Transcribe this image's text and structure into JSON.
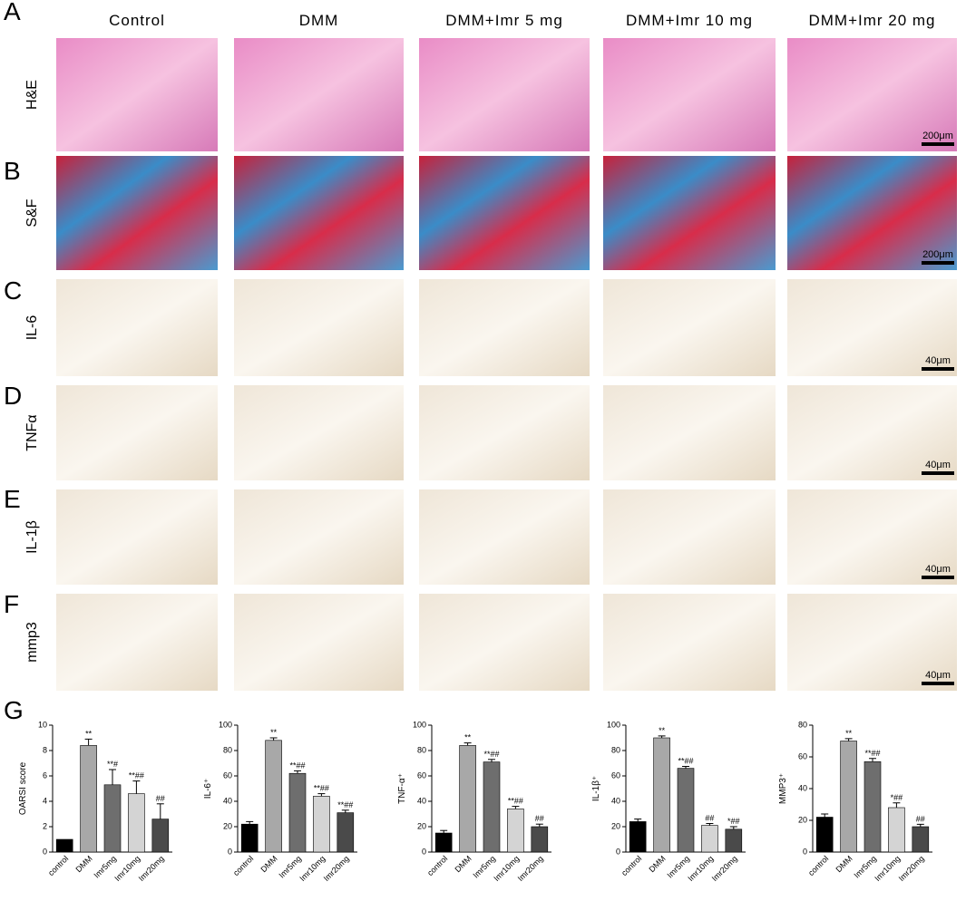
{
  "panels": [
    "A",
    "B",
    "C",
    "D",
    "E",
    "F",
    "G"
  ],
  "columns": [
    "Control",
    "DMM",
    "DMM+Imr 5 mg",
    "DMM+Imr 10 mg",
    "DMM+Imr 20 mg"
  ],
  "rows": [
    "H&E",
    "S&F",
    "IL-6",
    "TNFα",
    "IL-1β",
    "mmp3"
  ],
  "scale_bars": [
    "200μm",
    "200μm",
    "40μm",
    "40μm",
    "40μm",
    "40μm"
  ],
  "chart_data": [
    {
      "type": "bar",
      "y_label": "OARSI score",
      "categories": [
        "control",
        "DMM",
        "Imr5mg",
        "Imr10mg",
        "Imr20mg"
      ],
      "values": [
        1,
        8.4,
        5.3,
        4.6,
        2.6
      ],
      "errors": [
        0,
        0.5,
        1.2,
        1.0,
        1.2
      ],
      "annotations": [
        null,
        "**",
        "**#",
        "**##",
        "##"
      ],
      "colors": [
        "#000000",
        "#a8a8a8",
        "#6e6e6e",
        "#d4d4d4",
        "#4a4a4a"
      ],
      "ylim": [
        0,
        10
      ],
      "yticks": [
        0,
        2,
        4,
        6,
        8,
        10
      ]
    },
    {
      "type": "bar",
      "y_label": "IL-6⁺",
      "categories": [
        "control",
        "DMM",
        "Imr5mg",
        "Imr10mg",
        "Imr20mg"
      ],
      "values": [
        22,
        88,
        62,
        44,
        31
      ],
      "errors": [
        2,
        2,
        2,
        2,
        2
      ],
      "annotations": [
        null,
        "**",
        "**##",
        "**##",
        "**##"
      ],
      "colors": [
        "#000000",
        "#a8a8a8",
        "#6e6e6e",
        "#d4d4d4",
        "#4a4a4a"
      ],
      "ylim": [
        0,
        100
      ],
      "yticks": [
        0,
        20,
        40,
        60,
        80,
        100
      ]
    },
    {
      "type": "bar",
      "y_label": "TNF-α⁺",
      "categories": [
        "control",
        "DMM",
        "Imr5mg",
        "Imr10mg",
        "Imr20mg"
      ],
      "values": [
        15,
        84,
        71,
        34,
        20
      ],
      "errors": [
        2,
        2,
        2,
        2,
        2
      ],
      "annotations": [
        null,
        "**",
        "**##",
        "**##",
        "##"
      ],
      "colors": [
        "#000000",
        "#a8a8a8",
        "#6e6e6e",
        "#d4d4d4",
        "#4a4a4a"
      ],
      "ylim": [
        0,
        100
      ],
      "yticks": [
        0,
        20,
        40,
        60,
        80,
        100
      ]
    },
    {
      "type": "bar",
      "y_label": "IL-1β⁺",
      "categories": [
        "control",
        "DMM",
        "Imr5mg",
        "Imr10mg",
        "Imr20mg"
      ],
      "values": [
        24,
        90,
        66,
        21,
        18
      ],
      "errors": [
        2,
        1.5,
        1.5,
        1.5,
        2
      ],
      "annotations": [
        null,
        "**",
        "**##",
        "##",
        "*##"
      ],
      "colors": [
        "#000000",
        "#a8a8a8",
        "#6e6e6e",
        "#d4d4d4",
        "#4a4a4a"
      ],
      "ylim": [
        0,
        100
      ],
      "yticks": [
        0,
        20,
        40,
        60,
        80,
        100
      ]
    },
    {
      "type": "bar",
      "y_label": "MMP3⁺",
      "categories": [
        "control",
        "DMM",
        "Imr5mg",
        "Imr10mg",
        "Imr20mg"
      ],
      "values": [
        22,
        70,
        57,
        28,
        16
      ],
      "errors": [
        2,
        1.5,
        2,
        3,
        1.5
      ],
      "annotations": [
        null,
        "**",
        "**##",
        "*##",
        "##"
      ],
      "colors": [
        "#000000",
        "#a8a8a8",
        "#6e6e6e",
        "#d4d4d4",
        "#4a4a4a"
      ],
      "ylim": [
        0,
        80
      ],
      "yticks": [
        0,
        20,
        40,
        60,
        80
      ]
    }
  ]
}
